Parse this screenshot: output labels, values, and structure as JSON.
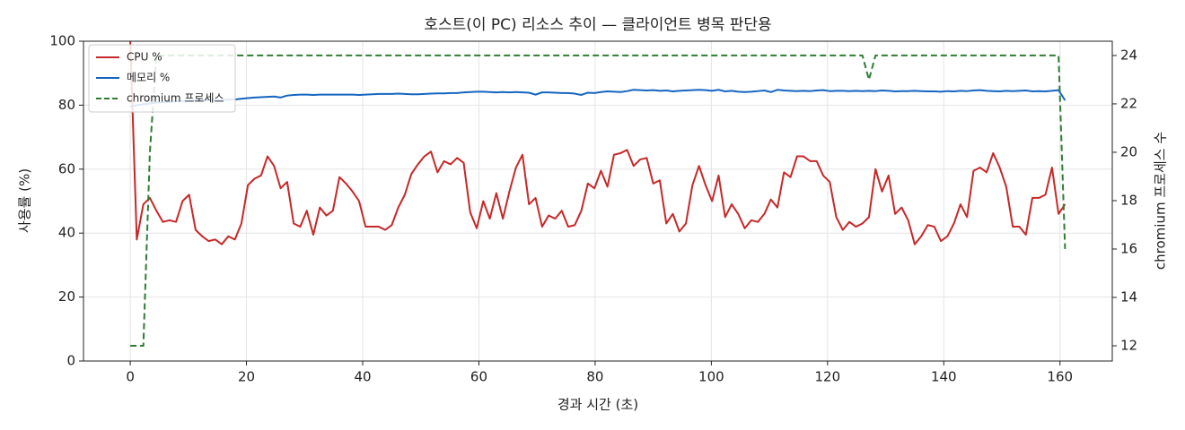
{
  "chart_data": {
    "type": "line",
    "title": "호스트(이 PC) 리소스 추이 — 클라이언트 병목 판단용",
    "x_label": "경과 시간 (초)",
    "y_label": "사용률 (%)",
    "y2_label": "chromium 프로세스 수",
    "x": [
      0,
      1.125,
      2.25,
      3.375,
      4.5,
      5.625,
      6.75,
      7.875,
      9,
      10.125,
      11.25,
      12.375,
      13.5,
      14.625,
      15.75,
      16.875,
      18,
      19.125,
      20.25,
      21.375,
      22.5,
      23.625,
      24.75,
      25.875,
      27,
      28.125,
      29.25,
      30.375,
      31.5,
      32.625,
      33.75,
      34.875,
      36,
      37.125,
      38.25,
      39.375,
      40.5,
      41.625,
      42.75,
      43.875,
      45,
      46.125,
      47.25,
      48.375,
      49.5,
      50.625,
      51.75,
      52.875,
      54,
      55.125,
      56.25,
      57.375,
      58.5,
      59.625,
      60.75,
      61.875,
      63,
      64.125,
      65.25,
      66.375,
      67.5,
      68.625,
      69.75,
      70.875,
      72,
      73.125,
      74.25,
      75.375,
      76.5,
      77.625,
      78.75,
      79.875,
      81,
      82.125,
      83.25,
      84.375,
      85.5,
      86.625,
      87.75,
      88.875,
      90,
      91.125,
      92.25,
      93.375,
      94.5,
      95.625,
      96.75,
      97.875,
      99,
      100.125,
      101.25,
      102.375,
      103.5,
      104.625,
      105.75,
      106.875,
      108,
      109.125,
      110.25,
      111.375,
      112.5,
      113.625,
      114.75,
      115.875,
      117,
      118.125,
      119.25,
      120.375,
      121.5,
      122.625,
      123.75,
      124.875,
      126,
      127.125,
      128.25,
      129.375,
      130.5,
      131.625,
      132.75,
      133.875,
      135,
      136.125,
      137.25,
      138.375,
      139.5,
      140.625,
      141.75,
      142.875,
      144,
      145.125,
      146.25,
      147.375,
      148.5,
      149.625,
      150.75,
      151.875,
      153,
      154.125,
      155.25,
      156.375,
      157.5,
      158.625,
      159.75,
      160.875
    ],
    "series": [
      {
        "name": "CPU %",
        "color": "#c62828",
        "dashed": false,
        "values": [
          100,
          38,
          49,
          51,
          47,
          43.5,
          44,
          43.5,
          50,
          52,
          41,
          39,
          37.5,
          38,
          36.5,
          39,
          38,
          43,
          55,
          57,
          58,
          64,
          61,
          54,
          56,
          43,
          42,
          47,
          39.5,
          48,
          45.5,
          47,
          57.5,
          55.5,
          53,
          50,
          42,
          42,
          42,
          41,
          42.5,
          48,
          52,
          58.5,
          61.5,
          64,
          65.5,
          59,
          62.5,
          61.5,
          63.5,
          62,
          46.5,
          41.5,
          50,
          44.5,
          52.5,
          44.5,
          53,
          60.5,
          64.5,
          49,
          51,
          42,
          45.5,
          44.5,
          47,
          42,
          42.5,
          47,
          55.5,
          54,
          59.5,
          54.5,
          64.5,
          65,
          66,
          61,
          63,
          63.5,
          55.5,
          56.5,
          43,
          46,
          40.5,
          43,
          55,
          61,
          55,
          50,
          58,
          45,
          49,
          46,
          41.5,
          44,
          43.5,
          46,
          50.5,
          48,
          59,
          57.5,
          64,
          64,
          62.5,
          62.5,
          58,
          56,
          45,
          41,
          43.5,
          42,
          43,
          45,
          60,
          53,
          58,
          46,
          48,
          44,
          36.5,
          39,
          42.5,
          42,
          37.5,
          39,
          43,
          49,
          45,
          59.5,
          60.5,
          59,
          65,
          60.5,
          54.5,
          42,
          42,
          39.5,
          51,
          51,
          52,
          60.5,
          46,
          49
        ]
      },
      {
        "name": "메모리 %",
        "color": "#1565c0",
        "dashed": false,
        "values": [
          79.5,
          80,
          80.3,
          80.5,
          80.8,
          81,
          81,
          81.2,
          81.3,
          81.4,
          81.5,
          81.5,
          81.6,
          81.6,
          81.6,
          81.7,
          81.8,
          82,
          82.2,
          82.4,
          82.5,
          82.6,
          82.7,
          82.4,
          83,
          83.2,
          83.3,
          83.3,
          83.2,
          83.3,
          83.3,
          83.3,
          83.3,
          83.3,
          83.3,
          83.2,
          83.3,
          83.4,
          83.5,
          83.5,
          83.5,
          83.6,
          83.5,
          83.4,
          83.4,
          83.5,
          83.6,
          83.7,
          83.7,
          83.8,
          83.8,
          84,
          84.1,
          84.2,
          84.2,
          84.1,
          84,
          84.1,
          84,
          84.1,
          84,
          83.9,
          83.3,
          84,
          84,
          83.9,
          83.8,
          83.8,
          83.6,
          83.2,
          83.9,
          83.8,
          84.1,
          84.3,
          84.2,
          84.1,
          84.4,
          84.8,
          84.7,
          84.6,
          84.7,
          84.5,
          84.6,
          84.3,
          84.5,
          84.6,
          84.7,
          84.8,
          84.7,
          84.5,
          84.8,
          84.3,
          84.5,
          84.2,
          84.1,
          84.2,
          84.4,
          84.6,
          84.1,
          84.8,
          84.6,
          84.5,
          84.4,
          84.5,
          84.4,
          84.6,
          84.7,
          84.4,
          84.5,
          84.5,
          84.4,
          84.5,
          84.4,
          84.5,
          84.4,
          84.6,
          84.5,
          84.3,
          84.4,
          84.4,
          84.5,
          84.4,
          84.3,
          84.3,
          84.2,
          84.4,
          84.3,
          84.5,
          84.4,
          84.6,
          84.7,
          84.5,
          84.4,
          84.3,
          84.5,
          84.4,
          84.5,
          84.6,
          84.3,
          84.4,
          84.3,
          84.5,
          84.7,
          81.5
        ]
      },
      {
        "name": "chromium 프로세스",
        "color": "#2e7d32",
        "dashed": true,
        "axis": "y2",
        "values": [
          12,
          12,
          12,
          20,
          24,
          24,
          24,
          24,
          24,
          24,
          24,
          24,
          24,
          24,
          24,
          24,
          24,
          24,
          24,
          24,
          24,
          24,
          24,
          24,
          24,
          24,
          24,
          24,
          24,
          24,
          24,
          24,
          24,
          24,
          24,
          24,
          24,
          24,
          24,
          24,
          24,
          24,
          24,
          24,
          24,
          24,
          24,
          24,
          24,
          24,
          24,
          24,
          24,
          24,
          24,
          24,
          24,
          24,
          24,
          24,
          24,
          24,
          24,
          24,
          24,
          24,
          24,
          24,
          24,
          24,
          24,
          24,
          24,
          24,
          24,
          24,
          24,
          24,
          24,
          24,
          24,
          24,
          24,
          24,
          24,
          24,
          24,
          24,
          24,
          24,
          24,
          24,
          24,
          24,
          24,
          24,
          24,
          24,
          24,
          24,
          24,
          24,
          24,
          24,
          24,
          24,
          24,
          24,
          24,
          24,
          24,
          24,
          24,
          23,
          24,
          24,
          24,
          24,
          24,
          24,
          24,
          24,
          24,
          24,
          24,
          24,
          24,
          24,
          24,
          24,
          24,
          24,
          24,
          24,
          24,
          24,
          24,
          24,
          24,
          24,
          24,
          24,
          24,
          16
        ]
      }
    ],
    "xlim": [
      -8.05,
      169
    ],
    "xticks": [
      0,
      20,
      40,
      60,
      80,
      100,
      120,
      140,
      160
    ],
    "ylim": [
      0,
      100
    ],
    "yticks": [
      0,
      20,
      40,
      60,
      80,
      100
    ],
    "y2lim": [
      11.37,
      24.59
    ],
    "y2ticks": [
      12,
      14,
      16,
      18,
      20,
      22,
      24
    ],
    "grid": true,
    "legend": "upper-left"
  }
}
